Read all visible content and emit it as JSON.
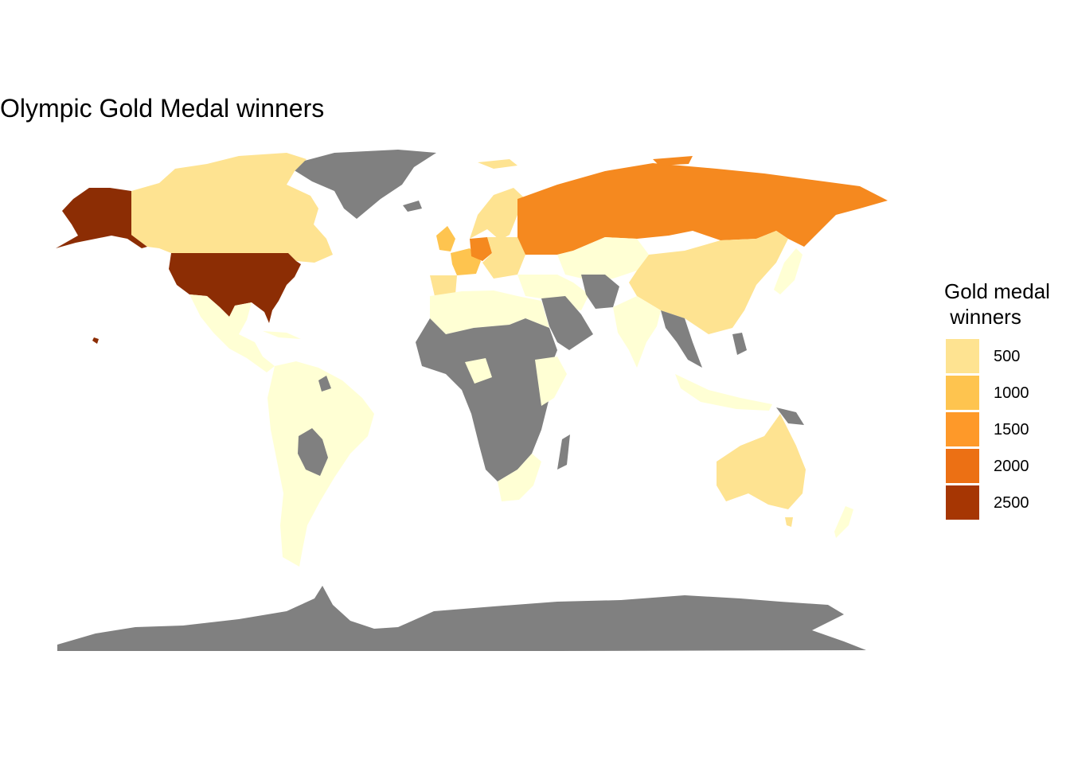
{
  "title": "Olympic Gold Medal winners",
  "legend": {
    "title": "Gold medal\n winners",
    "keys": [
      {
        "label": "500",
        "color": "#FEE391"
      },
      {
        "label": "1000",
        "color": "#FEC44F"
      },
      {
        "label": "1500",
        "color": "#FE9929"
      },
      {
        "label": "2000",
        "color": "#EC7014"
      },
      {
        "label": "2500",
        "color": "#A63603"
      }
    ]
  },
  "colors": {
    "no_data": "#808080",
    "very_low": "#FFFFD4",
    "low": "#FEE391",
    "mid": "#FEC44F",
    "mid_high": "#F5891F",
    "very_high": "#8C2D04"
  },
  "chart_data": {
    "type": "choropleth",
    "title": "Olympic Gold Medal winners",
    "legend_title": "Gold medal winners",
    "legend_breaks": [
      500,
      1000,
      1500,
      2000,
      2500
    ],
    "legend_position": "right",
    "regions": [
      {
        "name": "United States",
        "approx_value": 2700
      },
      {
        "name": "Russia",
        "approx_value": 1500
      },
      {
        "name": "Germany",
        "approx_value": 1200
      },
      {
        "name": "United Kingdom",
        "approx_value": 700
      },
      {
        "name": "France",
        "approx_value": 700
      },
      {
        "name": "Italy",
        "approx_value": 600
      },
      {
        "name": "Canada",
        "approx_value": 500
      },
      {
        "name": "China",
        "approx_value": 450
      },
      {
        "name": "Australia",
        "approx_value": 450
      },
      {
        "name": "Sweden",
        "approx_value": 500
      },
      {
        "name": "Greenland",
        "approx_value": null
      },
      {
        "name": "Antarctica",
        "approx_value": null
      }
    ]
  }
}
